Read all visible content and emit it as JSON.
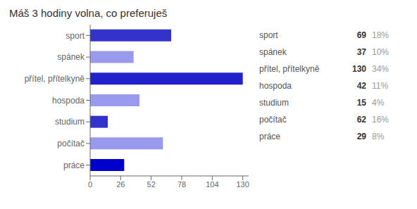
{
  "chart_data": {
    "type": "bar",
    "orientation": "horizontal",
    "title": "Máš 3 hodiny volna, co preferuješ",
    "categories": [
      "sport",
      "spánek",
      "přítel, přítelkyně",
      "hospoda",
      "studium",
      "počítač",
      "práce"
    ],
    "values": [
      69,
      37,
      130,
      42,
      15,
      62,
      29
    ],
    "colors": [
      "#3333cc",
      "#9999ee",
      "#2222cc",
      "#9999ee",
      "#3333cc",
      "#9999ee",
      "#0000cc"
    ],
    "percents": [
      {
        "value": 18,
        "label": "18%"
      },
      {
        "value": 10,
        "label": "10%"
      },
      {
        "value": 34,
        "label": "34%"
      },
      {
        "value": 11,
        "label": "11%"
      },
      {
        "value": 4,
        "label": "4%"
      },
      {
        "value": 16,
        "label": "16%"
      },
      {
        "value": 8,
        "label": "8%"
      }
    ],
    "xlim": [
      0,
      135
    ],
    "xticks": [
      0,
      26,
      52,
      78,
      104,
      130
    ],
    "grid": false,
    "legend": "right"
  }
}
